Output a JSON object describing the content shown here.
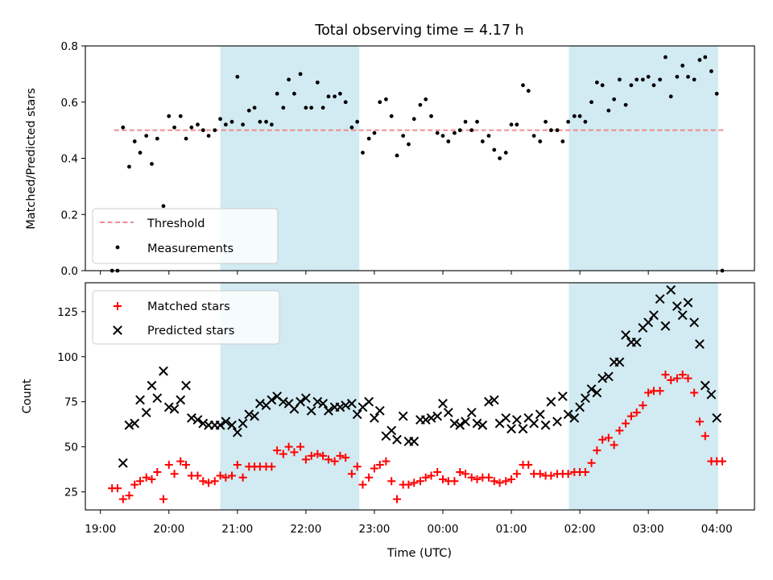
{
  "chart_data": [
    {
      "type": "scatter",
      "title": "Total observing time = 4.17 h",
      "ylabel": "Matched/Predicted stars",
      "ylim": [
        0,
        0.8
      ],
      "yticks": [
        0,
        0.2,
        0.4,
        0.6,
        0.8
      ],
      "ytick_labels": [
        "0.0",
        "0.2",
        "0.4",
        "0.6",
        "0.8"
      ],
      "xlim": [
        18.78,
        28.55
      ],
      "shaded_spans": [
        [
          20.75,
          22.78
        ],
        [
          25.84,
          28.02
        ]
      ],
      "shade_color": "#add8e6",
      "threshold": {
        "name": "Threshold",
        "value": 0.5,
        "x_range": [
          19.2,
          28.1
        ],
        "color": "#f08080"
      },
      "series": [
        {
          "name": "Measurements",
          "color": "#000000",
          "x": [
            19.17,
            19.25,
            19.33,
            19.42,
            19.5,
            19.58,
            19.67,
            19.75,
            19.83,
            19.92,
            20.0,
            20.08,
            20.17,
            20.25,
            20.33,
            20.42,
            20.5,
            20.58,
            20.67,
            20.75,
            20.83,
            20.92,
            21.0,
            21.08,
            21.17,
            21.25,
            21.33,
            21.42,
            21.5,
            21.58,
            21.67,
            21.75,
            21.83,
            21.92,
            22.0,
            22.08,
            22.17,
            22.25,
            22.33,
            22.42,
            22.5,
            22.58,
            22.67,
            22.75,
            22.83,
            22.92,
            23.0,
            23.08,
            23.17,
            23.25,
            23.33,
            23.42,
            23.5,
            23.58,
            23.67,
            23.75,
            23.83,
            23.92,
            24.0,
            24.08,
            24.17,
            24.25,
            24.33,
            24.42,
            24.5,
            24.58,
            24.67,
            24.75,
            24.83,
            24.92,
            25.0,
            25.08,
            25.17,
            25.25,
            25.33,
            25.42,
            25.5,
            25.58,
            25.67,
            25.75,
            25.83,
            25.92,
            26.0,
            26.08,
            26.17,
            26.25,
            26.33,
            26.42,
            26.5,
            26.58,
            26.67,
            26.75,
            26.83,
            26.92,
            27.0,
            27.08,
            27.17,
            27.25,
            27.33,
            27.42,
            27.5,
            27.58,
            27.67,
            27.75,
            27.83,
            27.92,
            28.0,
            28.08
          ],
          "y": [
            0.0,
            0.0,
            0.51,
            0.37,
            0.46,
            0.42,
            0.48,
            0.38,
            0.47,
            0.23,
            0.55,
            0.51,
            0.55,
            0.47,
            0.51,
            0.52,
            0.5,
            0.48,
            0.5,
            0.54,
            0.52,
            0.53,
            0.69,
            0.52,
            0.57,
            0.58,
            0.53,
            0.53,
            0.52,
            0.63,
            0.58,
            0.68,
            0.63,
            0.7,
            0.58,
            0.58,
            0.67,
            0.58,
            0.62,
            0.62,
            0.63,
            0.6,
            0.51,
            0.53,
            0.42,
            0.47,
            0.49,
            0.6,
            0.61,
            0.55,
            0.41,
            0.48,
            0.45,
            0.54,
            0.59,
            0.61,
            0.55,
            0.49,
            0.48,
            0.46,
            0.49,
            0.5,
            0.53,
            0.5,
            0.53,
            0.46,
            0.48,
            0.43,
            0.4,
            0.42,
            0.52,
            0.52,
            0.66,
            0.64,
            0.48,
            0.46,
            0.53,
            0.5,
            0.5,
            0.46,
            0.53,
            0.55,
            0.55,
            0.53,
            0.6,
            0.67,
            0.66,
            0.57,
            0.61,
            0.68,
            0.59,
            0.66,
            0.68,
            0.68,
            0.69,
            0.66,
            0.68,
            0.76,
            0.62,
            0.69,
            0.73,
            0.69,
            0.68,
            0.75,
            0.76,
            0.71,
            0.63,
            0.0
          ]
        }
      ]
    },
    {
      "type": "scatter",
      "xlabel": "Time (UTC)",
      "ylabel": "Count",
      "ylim": [
        15,
        141
      ],
      "yticks": [
        25,
        50,
        75,
        100,
        125
      ],
      "ytick_labels": [
        "25",
        "50",
        "75",
        "100",
        "125"
      ],
      "xlim": [
        18.78,
        28.55
      ],
      "xticks": [
        19,
        20,
        21,
        22,
        23,
        24,
        25,
        26,
        27,
        28
      ],
      "xtick_labels": [
        "19:00",
        "20:00",
        "21:00",
        "22:00",
        "23:00",
        "00:00",
        "01:00",
        "02:00",
        "03:00",
        "04:00"
      ],
      "shaded_spans": [
        [
          20.75,
          22.78
        ],
        [
          25.84,
          28.02
        ]
      ],
      "shade_color": "#add8e6",
      "series": [
        {
          "name": "Matched stars",
          "marker": "+",
          "color": "#ff0000",
          "x": [
            19.17,
            19.25,
            19.33,
            19.42,
            19.5,
            19.58,
            19.67,
            19.75,
            19.83,
            19.92,
            20.0,
            20.08,
            20.17,
            20.25,
            20.33,
            20.42,
            20.5,
            20.58,
            20.67,
            20.75,
            20.83,
            20.92,
            21.0,
            21.08,
            21.17,
            21.25,
            21.33,
            21.42,
            21.5,
            21.58,
            21.67,
            21.75,
            21.83,
            21.92,
            22.0,
            22.08,
            22.17,
            22.25,
            22.33,
            22.42,
            22.5,
            22.58,
            22.67,
            22.75,
            22.83,
            22.92,
            23.0,
            23.08,
            23.17,
            23.25,
            23.33,
            23.42,
            23.5,
            23.58,
            23.67,
            23.75,
            23.83,
            23.92,
            24.0,
            24.08,
            24.17,
            24.25,
            24.33,
            24.42,
            24.5,
            24.58,
            24.67,
            24.75,
            24.83,
            24.92,
            25.0,
            25.08,
            25.17,
            25.25,
            25.33,
            25.42,
            25.5,
            25.58,
            25.67,
            25.75,
            25.83,
            25.92,
            26.0,
            26.08,
            26.17,
            26.25,
            26.33,
            26.42,
            26.5,
            26.58,
            26.67,
            26.75,
            26.83,
            26.92,
            27.0,
            27.08,
            27.17,
            27.25,
            27.33,
            27.42,
            27.5,
            27.58,
            27.67,
            27.75,
            27.83,
            27.92,
            28.0,
            28.08
          ],
          "y": [
            27,
            27,
            21,
            23,
            29,
            31,
            33,
            32,
            36,
            21,
            40,
            35,
            42,
            40,
            34,
            34,
            31,
            30,
            31,
            34,
            33,
            34,
            40,
            33,
            39,
            39,
            39,
            39,
            39,
            48,
            46,
            50,
            47,
            50,
            43,
            45,
            46,
            45,
            43,
            42,
            45,
            44,
            35,
            39,
            29,
            33,
            38,
            40,
            42,
            31,
            21,
            29,
            29,
            30,
            31,
            33,
            34,
            36,
            32,
            31,
            31,
            36,
            35,
            33,
            32,
            33,
            33,
            31,
            30,
            31,
            32,
            35,
            40,
            40,
            35,
            35,
            34,
            34,
            35,
            35,
            35,
            36,
            36,
            36,
            41,
            48,
            54,
            55,
            51,
            59,
            63,
            67,
            69,
            73,
            80,
            81,
            81,
            90,
            87,
            88,
            90,
            88,
            80,
            64,
            56,
            42,
            42,
            42
          ]
        },
        {
          "name": "Predicted stars",
          "marker": "x",
          "color": "#000000",
          "x": [
            19.33,
            19.42,
            19.5,
            19.58,
            19.67,
            19.75,
            19.83,
            19.92,
            20.0,
            20.08,
            20.17,
            20.25,
            20.33,
            20.42,
            20.5,
            20.58,
            20.67,
            20.75,
            20.83,
            20.92,
            21.0,
            21.08,
            21.17,
            21.25,
            21.33,
            21.42,
            21.5,
            21.58,
            21.67,
            21.75,
            21.83,
            21.92,
            22.0,
            22.08,
            22.17,
            22.25,
            22.33,
            22.42,
            22.5,
            22.58,
            22.67,
            22.75,
            22.83,
            22.92,
            23.0,
            23.08,
            23.17,
            23.25,
            23.33,
            23.42,
            23.5,
            23.58,
            23.67,
            23.75,
            23.83,
            23.92,
            24.0,
            24.08,
            24.17,
            24.25,
            24.33,
            24.42,
            24.5,
            24.58,
            24.67,
            24.75,
            24.83,
            24.92,
            25.0,
            25.08,
            25.17,
            25.25,
            25.33,
            25.42,
            25.5,
            25.58,
            25.67,
            25.75,
            25.83,
            25.92,
            26.0,
            26.08,
            26.17,
            26.25,
            26.33,
            26.42,
            26.5,
            26.58,
            26.67,
            26.75,
            26.83,
            26.92,
            27.0,
            27.08,
            27.17,
            27.25,
            27.33,
            27.42,
            27.5,
            27.58,
            27.67,
            27.75,
            27.83,
            27.92,
            28.0
          ],
          "y": [
            41,
            62,
            63,
            76,
            69,
            84,
            77,
            92,
            72,
            71,
            76,
            84,
            66,
            65,
            63,
            62,
            62,
            62,
            64,
            62,
            58,
            63,
            68,
            67,
            74,
            73,
            76,
            78,
            75,
            74,
            71,
            75,
            77,
            70,
            75,
            74,
            70,
            72,
            72,
            73,
            74,
            68,
            72,
            75,
            66,
            70,
            56,
            59,
            54,
            67,
            53,
            53,
            65,
            65,
            66,
            67,
            74,
            69,
            63,
            62,
            64,
            69,
            63,
            62,
            75,
            76,
            63,
            66,
            60,
            65,
            60,
            66,
            63,
            68,
            62,
            75,
            64,
            78,
            68,
            66,
            72,
            77,
            82,
            80,
            88,
            89,
            97,
            97,
            112,
            108,
            108,
            116,
            119,
            123,
            132,
            117,
            137,
            128,
            123,
            130,
            119,
            107,
            84,
            79,
            66
          ]
        }
      ]
    }
  ]
}
